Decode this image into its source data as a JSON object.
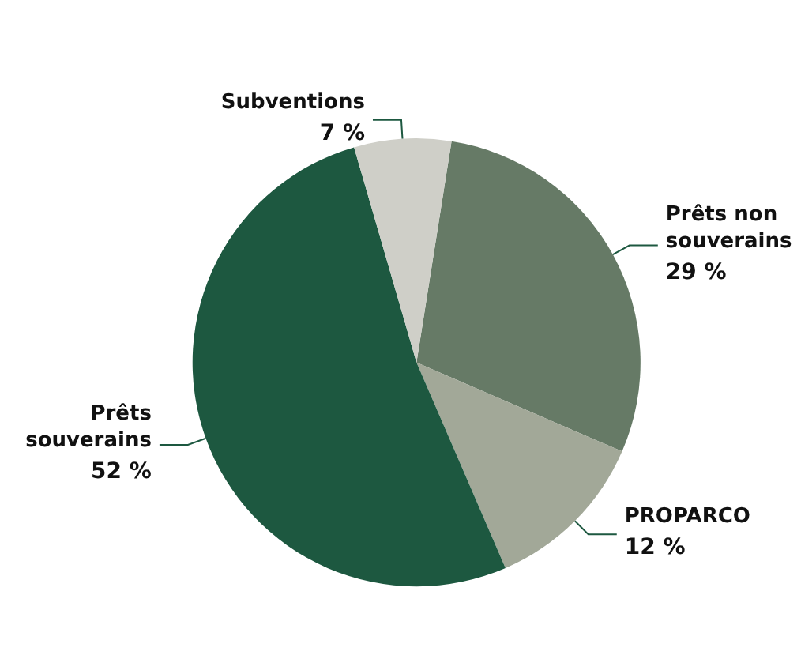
{
  "chart_data": {
    "type": "pie",
    "categories": [
      "Prêts non souverains",
      "PROPARCO",
      "Prêts souverains",
      "Subventions"
    ],
    "values": [
      29,
      12,
      52,
      7
    ],
    "value_labels": [
      "29 %",
      "12 %",
      "52 %",
      "7 %"
    ],
    "colors": [
      "#667a66",
      "#a2a898",
      "#1d5840",
      "#cfcfc8"
    ],
    "legend": false
  }
}
